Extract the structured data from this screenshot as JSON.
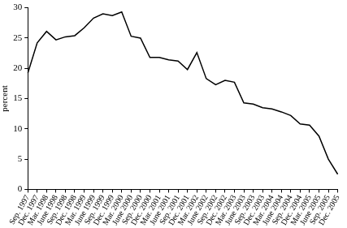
{
  "chart_data": {
    "type": "line",
    "y_label": "percent",
    "categories": [
      "Sep. 1997",
      "Dec. 1997",
      "Mar. 1998",
      "June 1998",
      "Sep. 1998",
      "Dec. 1998",
      "Mar. 1999",
      "June 1999",
      "Sep. 1999",
      "Dec. 1999",
      "Mar. 2000",
      "June 2000",
      "Sep. 2000",
      "Dec. 2000",
      "Mar. 2001",
      "June 2001",
      "Sep. 2001",
      "Dec. 2001",
      "Mar. 2002",
      "June 2002",
      "Sep. 2002",
      "Dec. 2002",
      "Mar. 2003",
      "June 2003",
      "Sep. 2003",
      "Dec. 2003",
      "Mar. 2004",
      "June 2004",
      "Sep. 2004",
      "Dec. 2004",
      "Mar. 2005",
      "June 2005",
      "Sep. 2005",
      "Dec. 2005"
    ],
    "values": [
      19.2,
      24.2,
      26.1,
      24.7,
      25.2,
      25.4,
      26.7,
      28.3,
      29.0,
      28.7,
      29.3,
      25.3,
      25.0,
      21.8,
      21.8,
      21.4,
      21.2,
      19.8,
      22.6,
      18.3,
      17.3,
      18.0,
      17.7,
      14.3,
      14.1,
      13.5,
      13.3,
      12.8,
      12.2,
      10.8,
      10.6,
      8.8,
      5.0,
      2.5
    ],
    "color": "#000000",
    "ylim": [
      0,
      30
    ],
    "yticks": [
      0,
      5,
      10,
      15,
      20,
      25,
      30
    ],
    "grid": false
  }
}
